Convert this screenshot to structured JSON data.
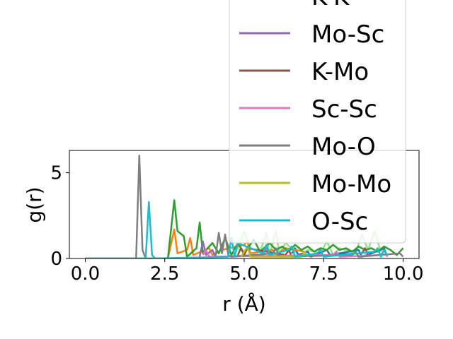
{
  "chart_data": {
    "type": "line",
    "xlabel": "r (Å)",
    "ylabel": "g(r)",
    "xlim": [
      -0.5,
      10.5
    ],
    "ylim": [
      0,
      6.3
    ],
    "xticks": [
      0.0,
      2.5,
      5.0,
      7.5,
      10.0
    ],
    "xtick_labels": [
      "0.0",
      "2.5",
      "5.0",
      "7.5",
      "10.0"
    ],
    "yticks": [
      0,
      5
    ],
    "ytick_labels": [
      "0",
      "5"
    ],
    "grid": false,
    "legend_position": "upper-right (extends above plot)",
    "series": [
      {
        "name": "",
        "color": "#1f77b4",
        "x": [
          6.5,
          6.6,
          6.7,
          7.0,
          7.1,
          7.6,
          7.7,
          8.6,
          8.7,
          9.3,
          9.4,
          9.5
        ],
        "y": [
          0.3,
          0.6,
          0.2,
          0.4,
          0.1,
          0.5,
          0.2,
          0.5,
          0.1,
          0.5,
          0.6,
          0.1
        ]
      },
      {
        "name": "",
        "color": "#ff7f0e",
        "x": [
          2.6,
          2.8,
          2.9,
          3.2,
          3.3,
          3.4,
          3.9,
          4.0,
          4.3,
          5.0,
          5.1,
          5.2,
          5.9,
          6.0,
          6.3,
          6.9
        ],
        "y": [
          0.0,
          1.7,
          0.3,
          0.5,
          1.2,
          0.2,
          0.6,
          0.2,
          0.5,
          0.8,
          1.0,
          0.3,
          0.5,
          0.2,
          0.6,
          0.4
        ]
      },
      {
        "name": "",
        "color": "#2ca02c",
        "x": [
          0,
          2.6,
          2.8,
          2.9,
          3.1,
          3.2,
          3.5,
          3.6,
          3.7,
          4.0,
          4.2,
          4.4,
          4.6,
          4.8,
          5.0,
          5.3,
          5.5,
          5.8,
          6.0,
          6.2,
          6.4,
          6.6,
          6.8,
          7.0,
          7.2,
          7.4,
          7.6,
          7.8,
          8.0,
          8.2,
          8.4,
          8.6,
          8.8,
          9.0,
          9.2,
          9.4,
          9.6,
          9.8,
          10.0
        ],
        "y": [
          0,
          0,
          3.4,
          1.6,
          1.3,
          0.1,
          0.6,
          2.1,
          0.3,
          0.9,
          0.3,
          1.2,
          0.2,
          0.9,
          0.3,
          1.1,
          0.4,
          0.9,
          0.5,
          0.7,
          0.4,
          0.8,
          0.5,
          0.7,
          0.4,
          0.6,
          0.5,
          0.8,
          0.5,
          0.6,
          0.4,
          0.7,
          0.5,
          0.6,
          0.4,
          0.7,
          0.5,
          0.2,
          0.6
        ]
      },
      {
        "name": "K-K",
        "color": "#d62728",
        "x": [],
        "y": []
      },
      {
        "name": "Mo-Sc",
        "color": "#9467bd",
        "x": [
          3.6,
          3.7,
          3.8,
          4.0,
          4.1,
          5.6,
          5.7,
          5.8
        ],
        "y": [
          0.1,
          1.0,
          0.2,
          0.5,
          0.1,
          0.2,
          0.7,
          0.1
        ]
      },
      {
        "name": "K-Mo",
        "color": "#8c564b",
        "x": [
          4.8,
          4.9,
          5.0,
          5.1,
          6.3,
          6.4,
          6.5,
          8.7,
          8.8,
          8.9
        ],
        "y": [
          0.2,
          0.6,
          0.2,
          0.6,
          0.2,
          0.5,
          0.1,
          0.3,
          0.6,
          0.2
        ]
      },
      {
        "name": "Sc-Sc",
        "color": "#e377c2",
        "x": [
          3.7,
          3.8,
          3.9,
          7.8,
          7.9,
          8.0,
          9.3,
          9.4,
          9.5
        ],
        "y": [
          0.2,
          0.5,
          0.1,
          0.2,
          0.4,
          0.1,
          0.2,
          0.5,
          0.1
        ]
      },
      {
        "name": "Mo-O",
        "color": "#7f7f7f",
        "x": [
          0,
          1.6,
          1.7,
          1.8,
          1.9,
          3.9,
          4.1,
          4.2,
          4.3,
          4.4,
          4.5,
          4.6,
          5.9,
          6.0,
          6.1,
          8.4,
          8.5,
          8.6,
          9.9,
          10.0
        ],
        "y": [
          0,
          0,
          6.0,
          0.5,
          0,
          0,
          0.1,
          1.5,
          0.3,
          1.4,
          0.2,
          0.1,
          0.3,
          0.6,
          0.1,
          0.2,
          0.4,
          0.1,
          0.3,
          0.1
        ]
      },
      {
        "name": "Mo-Mo",
        "color": "#bcbd22",
        "x": [
          4.9,
          5.0,
          5.1,
          5.2,
          6.8,
          6.9,
          7.0
        ],
        "y": [
          0.1,
          0.4,
          0.7,
          0.1,
          0.1,
          0.4,
          0.1
        ]
      },
      {
        "name": "O-Sc",
        "color": "#17becf",
        "x": [
          0,
          1.9,
          2.0,
          2.1,
          2.2,
          4.5,
          4.6,
          4.7,
          4.8,
          5.6,
          5.7,
          5.8,
          6.4,
          6.5,
          6.6,
          7.3,
          7.4,
          7.5,
          9.1,
          9.2,
          9.3,
          9.4,
          9.5
        ],
        "y": [
          0,
          0,
          3.3,
          0.2,
          0,
          0.1,
          1.2,
          0.1,
          0.9,
          0.3,
          0.8,
          0.2,
          0.5,
          0.7,
          0.1,
          0.3,
          0.5,
          0.1,
          0.4,
          0.6,
          0.1,
          0.5,
          0.2
        ]
      }
    ],
    "faded_series": [
      {
        "color": "#98df8a",
        "x": [
          4.8,
          5.0,
          5.2,
          5.5,
          5.7,
          5.8,
          6.0,
          6.1,
          6.3,
          6.6,
          6.8,
          7.0,
          7.4,
          7.6,
          7.8,
          8.0,
          8.5,
          8.7,
          8.9,
          9.1,
          9.3
        ],
        "y": [
          0.5,
          1.6,
          0.6,
          0.4,
          1.5,
          0.2,
          1.6,
          0.3,
          0.9,
          0.4,
          0.2,
          0.5,
          0.3,
          1.0,
          0.2,
          0.6,
          0.3,
          1.4,
          0.5,
          1.6,
          0.4
        ]
      }
    ]
  }
}
